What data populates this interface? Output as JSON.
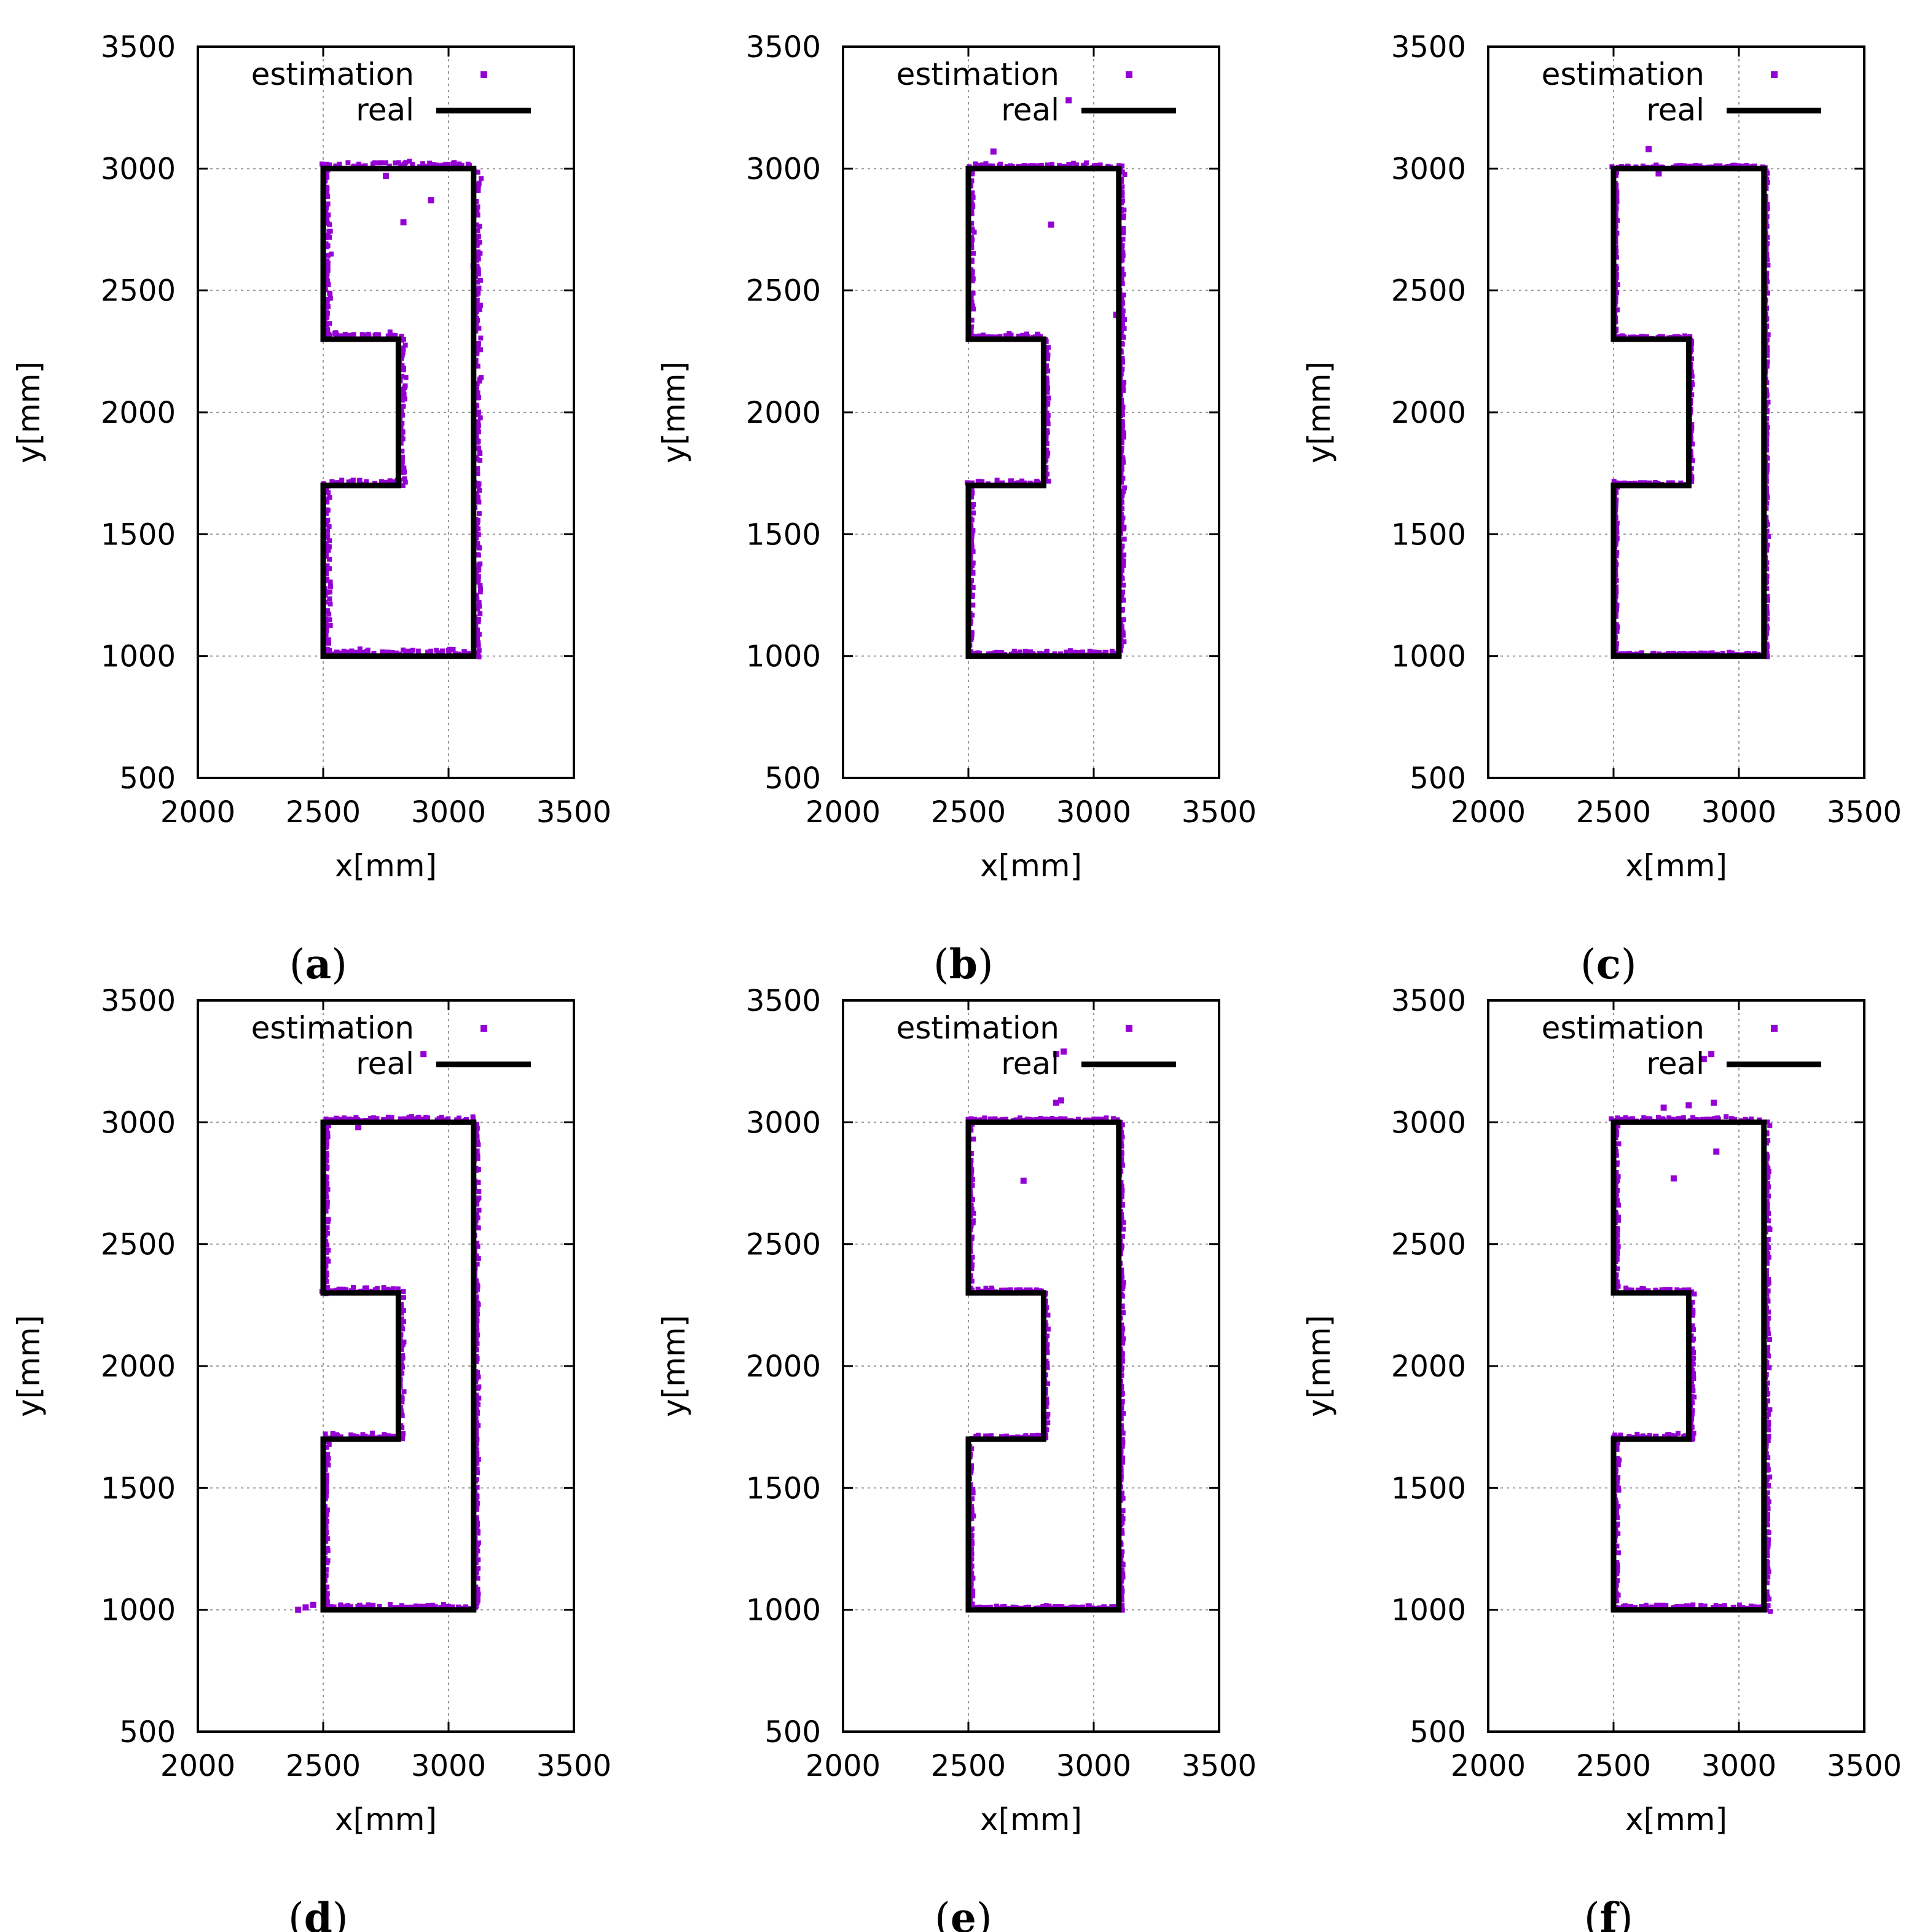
{
  "colors": {
    "estimation": "#9400d3",
    "real": "#000000",
    "grid": "#9a9a9a"
  },
  "chart_data": [
    {
      "panel": "a",
      "type": "scatter",
      "xlabel": "x[mm]",
      "ylabel": "y[mm]",
      "xlim": [
        2000,
        3500
      ],
      "ylim": [
        500,
        3500
      ],
      "xticks": [
        2000,
        2500,
        3000,
        3500
      ],
      "yticks": [
        500,
        1000,
        1500,
        2000,
        2500,
        3000,
        3500
      ],
      "grid": true,
      "legend": "top-right",
      "series": [
        {
          "name": "estimation",
          "kind": "points",
          "jitter": 18,
          "outliers": [
            [
              2820,
              2780
            ],
            [
              2930,
              2870
            ],
            [
              2750,
              2970
            ],
            [
              3100,
              2600
            ]
          ]
        },
        {
          "name": "real",
          "kind": "line",
          "x": [
            2500,
            3100,
            3100,
            2500,
            2500,
            2800,
            2800,
            2500,
            2500
          ],
          "y": [
            1000,
            1000,
            3000,
            3000,
            2300,
            2300,
            1700,
            1700,
            1000
          ]
        }
      ]
    },
    {
      "panel": "b",
      "type": "scatter",
      "xlabel": "x[mm]",
      "ylabel": "y[mm]",
      "xlim": [
        2000,
        3500
      ],
      "ylim": [
        500,
        3500
      ],
      "xticks": [
        2000,
        2500,
        3000,
        3500
      ],
      "yticks": [
        500,
        1000,
        1500,
        2000,
        2500,
        3000,
        3500
      ],
      "grid": true,
      "legend": "top-right",
      "series": [
        {
          "name": "estimation",
          "kind": "points",
          "jitter": 14,
          "outliers": [
            [
              2830,
              2770
            ],
            [
              2900,
              3280
            ],
            [
              2600,
              3070
            ],
            [
              3090,
              2400
            ]
          ]
        },
        {
          "name": "real",
          "kind": "line",
          "x": [
            2500,
            3100,
            3100,
            2500,
            2500,
            2800,
            2800,
            2500,
            2500
          ],
          "y": [
            1000,
            1000,
            3000,
            3000,
            2300,
            2300,
            1700,
            1700,
            1000
          ]
        }
      ]
    },
    {
      "panel": "c",
      "type": "scatter",
      "xlabel": "x[mm]",
      "ylabel": "y[mm]",
      "xlim": [
        2000,
        3500
      ],
      "ylim": [
        500,
        3500
      ],
      "xticks": [
        2000,
        2500,
        3000,
        3500
      ],
      "yticks": [
        500,
        1000,
        1500,
        2000,
        2500,
        3000,
        3500
      ],
      "grid": true,
      "legend": "top-right",
      "series": [
        {
          "name": "estimation",
          "kind": "points",
          "jitter": 10,
          "outliers": [
            [
              2640,
              3080
            ],
            [
              2680,
              2980
            ]
          ]
        },
        {
          "name": "real",
          "kind": "line",
          "x": [
            2500,
            3100,
            3100,
            2500,
            2500,
            2800,
            2800,
            2500,
            2500
          ],
          "y": [
            1000,
            1000,
            3000,
            3000,
            2300,
            2300,
            1700,
            1700,
            1000
          ]
        }
      ]
    },
    {
      "panel": "d",
      "type": "scatter",
      "xlabel": "x[mm]",
      "ylabel": "y[mm]",
      "xlim": [
        2000,
        3500
      ],
      "ylim": [
        500,
        3500
      ],
      "xticks": [
        2000,
        2500,
        3000,
        3500
      ],
      "yticks": [
        500,
        1000,
        1500,
        2000,
        2500,
        3000,
        3500
      ],
      "grid": true,
      "legend": "top-right",
      "series": [
        {
          "name": "estimation",
          "kind": "points",
          "jitter": 14,
          "outliers": [
            [
              2900,
              3280
            ],
            [
              2400,
              1000
            ],
            [
              2430,
              1010
            ],
            [
              2460,
              1020
            ],
            [
              2640,
              2980
            ]
          ]
        },
        {
          "name": "real",
          "kind": "line",
          "x": [
            2500,
            3100,
            3100,
            2500,
            2500,
            2800,
            2800,
            2500,
            2500
          ],
          "y": [
            1000,
            1000,
            3000,
            3000,
            2300,
            2300,
            1700,
            1700,
            1000
          ]
        }
      ]
    },
    {
      "panel": "e",
      "type": "scatter",
      "xlabel": "x[mm]",
      "ylabel": "y[mm]",
      "xlim": [
        2000,
        3500
      ],
      "ylim": [
        500,
        3500
      ],
      "xticks": [
        2000,
        2500,
        3000,
        3500
      ],
      "yticks": [
        500,
        1000,
        1500,
        2000,
        2500,
        3000,
        3500
      ],
      "grid": true,
      "legend": "top-right",
      "series": [
        {
          "name": "estimation",
          "kind": "points",
          "jitter": 12,
          "outliers": [
            [
              2720,
              2760
            ],
            [
              2850,
              3280
            ],
            [
              2880,
              3290
            ],
            [
              2870,
              3090
            ],
            [
              2850,
              3080
            ]
          ]
        },
        {
          "name": "real",
          "kind": "line",
          "x": [
            2500,
            3100,
            3100,
            2500,
            2500,
            2800,
            2800,
            2500,
            2500
          ],
          "y": [
            1000,
            1000,
            3000,
            3000,
            2300,
            2300,
            1700,
            1700,
            1000
          ]
        }
      ]
    },
    {
      "panel": "f",
      "type": "scatter",
      "xlabel": "x[mm]",
      "ylabel": "y[mm]",
      "xlim": [
        2000,
        3500
      ],
      "ylim": [
        500,
        3500
      ],
      "xticks": [
        2000,
        2500,
        3000,
        3500
      ],
      "yticks": [
        500,
        1000,
        1500,
        2000,
        2500,
        3000,
        3500
      ],
      "grid": true,
      "legend": "top-right",
      "series": [
        {
          "name": "estimation",
          "kind": "points",
          "jitter": 14,
          "outliers": [
            [
              2740,
              2770
            ],
            [
              2910,
              2880
            ],
            [
              2890,
              3280
            ],
            [
              2860,
              3260
            ],
            [
              2700,
              3060
            ],
            [
              2800,
              3070
            ],
            [
              2900,
              3080
            ]
          ]
        },
        {
          "name": "real",
          "kind": "line",
          "x": [
            2500,
            3100,
            3100,
            2500,
            2500,
            2800,
            2800,
            2500,
            2500
          ],
          "y": [
            1000,
            1000,
            3000,
            3000,
            2300,
            2300,
            1700,
            1700,
            1000
          ]
        }
      ]
    }
  ],
  "panel_labels": [
    "a",
    "b",
    "c",
    "d",
    "e",
    "f"
  ]
}
